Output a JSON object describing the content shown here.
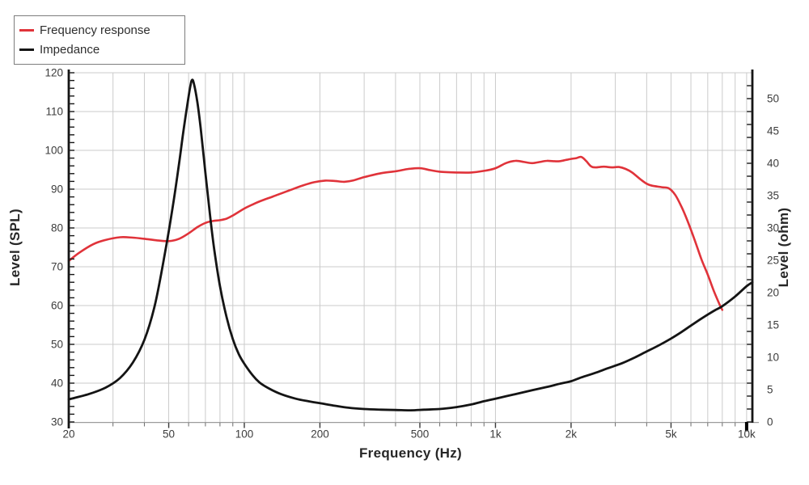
{
  "chart_data": {
    "type": "line",
    "title": "",
    "legend": [
      {
        "label": "Frequency response",
        "color": "#e0333a"
      },
      {
        "label": "Impedance",
        "color": "#141414"
      }
    ],
    "x_axis": {
      "label": "Frequency (Hz)",
      "scale": "log",
      "min": 20,
      "max": 10540,
      "ticks": [
        {
          "f": 20,
          "label": "20"
        },
        {
          "f": 50,
          "label": "50"
        },
        {
          "f": 100,
          "label": "100"
        },
        {
          "f": 200,
          "label": "200"
        },
        {
          "f": 500,
          "label": "500"
        },
        {
          "f": 1000,
          "label": "1k"
        },
        {
          "f": 2000,
          "label": "2k"
        },
        {
          "f": 5000,
          "label": "5k"
        },
        {
          "f": 10000,
          "label": "10k"
        }
      ],
      "minor_gridlines": [
        30,
        40,
        50,
        60,
        70,
        80,
        90,
        100,
        200,
        300,
        400,
        500,
        600,
        700,
        800,
        900,
        1000,
        2000,
        3000,
        4000,
        5000,
        6000,
        7000,
        8000,
        9000,
        10000
      ]
    },
    "y_axis_left": {
      "label": "Level (SPL)",
      "min": 30,
      "max": 120,
      "ticks": [
        30,
        40,
        50,
        60,
        70,
        80,
        90,
        100,
        110,
        120
      ],
      "grid": true
    },
    "y_axis_right": {
      "label": "Level (ohm)",
      "min": 0,
      "max": 54,
      "ticks": [
        0,
        5,
        10,
        15,
        20,
        25,
        30,
        35,
        40,
        45,
        50
      ],
      "grid": false
    },
    "series": [
      {
        "name": "Frequency response",
        "axis": "left",
        "unit": "dB SPL",
        "color": "#e0333a",
        "points": [
          [
            20,
            71.5
          ],
          [
            22,
            73.6
          ],
          [
            25,
            75.8
          ],
          [
            28,
            76.9
          ],
          [
            32,
            77.6
          ],
          [
            36,
            77.5
          ],
          [
            40,
            77.2
          ],
          [
            45,
            76.8
          ],
          [
            50,
            76.6
          ],
          [
            55,
            77.2
          ],
          [
            60,
            78.6
          ],
          [
            65,
            80.2
          ],
          [
            70,
            81.3
          ],
          [
            75,
            81.8
          ],
          [
            80,
            82.0
          ],
          [
            85,
            82.4
          ],
          [
            90,
            83.2
          ],
          [
            100,
            85.0
          ],
          [
            110,
            86.3
          ],
          [
            120,
            87.3
          ],
          [
            130,
            88.1
          ],
          [
            150,
            89.6
          ],
          [
            170,
            90.9
          ],
          [
            190,
            91.8
          ],
          [
            210,
            92.2
          ],
          [
            230,
            92.1
          ],
          [
            250,
            91.9
          ],
          [
            270,
            92.2
          ],
          [
            300,
            93.1
          ],
          [
            350,
            94.1
          ],
          [
            400,
            94.6
          ],
          [
            450,
            95.2
          ],
          [
            500,
            95.4
          ],
          [
            550,
            94.9
          ],
          [
            600,
            94.5
          ],
          [
            700,
            94.3
          ],
          [
            800,
            94.3
          ],
          [
            900,
            94.7
          ],
          [
            1000,
            95.4
          ],
          [
            1100,
            96.7
          ],
          [
            1200,
            97.3
          ],
          [
            1300,
            97.0
          ],
          [
            1400,
            96.7
          ],
          [
            1500,
            97.0
          ],
          [
            1600,
            97.3
          ],
          [
            1700,
            97.2
          ],
          [
            1800,
            97.2
          ],
          [
            1900,
            97.5
          ],
          [
            2000,
            97.8
          ],
          [
            2100,
            98.0
          ],
          [
            2200,
            98.3
          ],
          [
            2300,
            97.2
          ],
          [
            2400,
            95.9
          ],
          [
            2500,
            95.6
          ],
          [
            2700,
            95.8
          ],
          [
            2900,
            95.6
          ],
          [
            3100,
            95.7
          ],
          [
            3300,
            95.2
          ],
          [
            3500,
            94.3
          ],
          [
            3800,
            92.4
          ],
          [
            4000,
            91.4
          ],
          [
            4200,
            90.9
          ],
          [
            4600,
            90.5
          ],
          [
            4900,
            90.2
          ],
          [
            5200,
            88.5
          ],
          [
            5500,
            85.5
          ],
          [
            5800,
            82.0
          ],
          [
            6200,
            77.0
          ],
          [
            6600,
            72.0
          ],
          [
            7000,
            68.0
          ],
          [
            7400,
            63.8
          ],
          [
            7800,
            60.3
          ],
          [
            8000,
            58.9
          ]
        ]
      },
      {
        "name": "Impedance",
        "axis": "right",
        "unit": "ohm",
        "color": "#141414",
        "points": [
          [
            20,
            3.5
          ],
          [
            24,
            4.3
          ],
          [
            28,
            5.3
          ],
          [
            32,
            6.8
          ],
          [
            36,
            9.2
          ],
          [
            40,
            12.7
          ],
          [
            44,
            18.0
          ],
          [
            48,
            25.5
          ],
          [
            52,
            33.5
          ],
          [
            55,
            40.0
          ],
          [
            57,
            44.5
          ],
          [
            59,
            48.5
          ],
          [
            61,
            52.0
          ],
          [
            62,
            52.9
          ],
          [
            63,
            52.3
          ],
          [
            65,
            49.5
          ],
          [
            67,
            45.5
          ],
          [
            70,
            38.5
          ],
          [
            73,
            32.0
          ],
          [
            76,
            26.5
          ],
          [
            80,
            21.0
          ],
          [
            85,
            16.2
          ],
          [
            90,
            12.8
          ],
          [
            95,
            10.5
          ],
          [
            100,
            9.0
          ],
          [
            108,
            7.2
          ],
          [
            115,
            6.1
          ],
          [
            125,
            5.2
          ],
          [
            140,
            4.3
          ],
          [
            160,
            3.6
          ],
          [
            180,
            3.2
          ],
          [
            200,
            2.9
          ],
          [
            230,
            2.5
          ],
          [
            260,
            2.2
          ],
          [
            300,
            2.0
          ],
          [
            350,
            1.9
          ],
          [
            400,
            1.85
          ],
          [
            460,
            1.8
          ],
          [
            520,
            1.9
          ],
          [
            600,
            2.0
          ],
          [
            700,
            2.3
          ],
          [
            800,
            2.7
          ],
          [
            900,
            3.2
          ],
          [
            1000,
            3.6
          ],
          [
            1200,
            4.3
          ],
          [
            1400,
            4.9
          ],
          [
            1600,
            5.4
          ],
          [
            1800,
            5.9
          ],
          [
            2000,
            6.3
          ],
          [
            2200,
            6.9
          ],
          [
            2500,
            7.6
          ],
          [
            2800,
            8.3
          ],
          [
            3200,
            9.1
          ],
          [
            3600,
            10.0
          ],
          [
            4000,
            10.9
          ],
          [
            4500,
            11.9
          ],
          [
            5000,
            12.9
          ],
          [
            5500,
            13.9
          ],
          [
            6000,
            14.9
          ],
          [
            6500,
            15.8
          ],
          [
            7000,
            16.6
          ],
          [
            7500,
            17.3
          ],
          [
            8000,
            17.9
          ],
          [
            9000,
            19.4
          ],
          [
            10000,
            21.0
          ],
          [
            10540,
            21.6
          ]
        ]
      }
    ]
  },
  "colors": {
    "curve_red": "#e0333a",
    "curve_black": "#141414",
    "gridline": "#cbcbcb",
    "bottom_axis": "#9b9b9b",
    "axis_line": "#151515",
    "tick_label": "#3c3c3c"
  }
}
